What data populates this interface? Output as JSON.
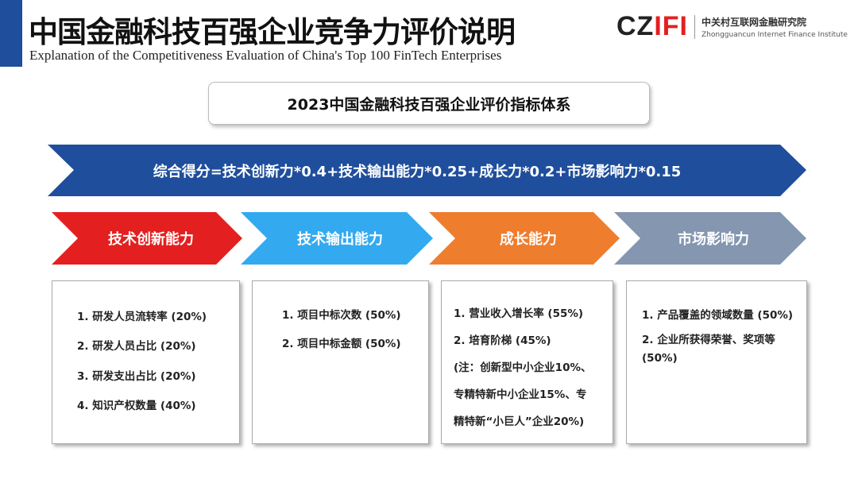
{
  "header": {
    "title": "中国金融科技百强企业竞争力评价说明",
    "subtitle": "Explanation of the Competitiveness Evaluation of China's Top 100 FinTech Enterprises",
    "logo": {
      "mark": "CZIFI",
      "name_cn": "中关村互联网金融研究院",
      "name_en": "Zhongguancun Internet Finance Institute"
    }
  },
  "system_title": "2023中国金融科技百强企业评价指标体系",
  "formula": "综合得分=技术创新力*0.4+技术输出能力*0.25+成长力*0.2+市场影响力*0.15",
  "colors": {
    "navy": "#1f4e9c",
    "red": "#e3201f",
    "light_blue": "#33aaf0",
    "orange": "#ee7d2e",
    "slate": "#8496b0"
  },
  "categories": [
    {
      "label": "技术创新能力",
      "color": "#e3201f",
      "items": [
        "1. 研发人员流转率 (20%)",
        "2. 研发人员占比 (20%)",
        "3. 研发支出占比 (20%)",
        "4. 知识产权数量 (40%)"
      ]
    },
    {
      "label": "技术输出能力",
      "color": "#33aaf0",
      "items": [
        "1. 项目中标次数 (50%)",
        "2. 项目中标金额 (50%)"
      ]
    },
    {
      "label": "成长能力",
      "color": "#ee7d2e",
      "items": [
        "1. 营业收入增长率 (55%)",
        "2. 培育阶梯 (45%)",
        "(注：创新型中小企业10%、",
        "专精特新中小企业15%、专",
        "精特新“小巨人”企业20%)"
      ]
    },
    {
      "label": "市场影响力",
      "color": "#8496b0",
      "items": [
        "1. 产品覆盖的领域数量 (50%)",
        "2. 企业所获得荣誉、奖项等",
        "(50%)"
      ]
    }
  ]
}
